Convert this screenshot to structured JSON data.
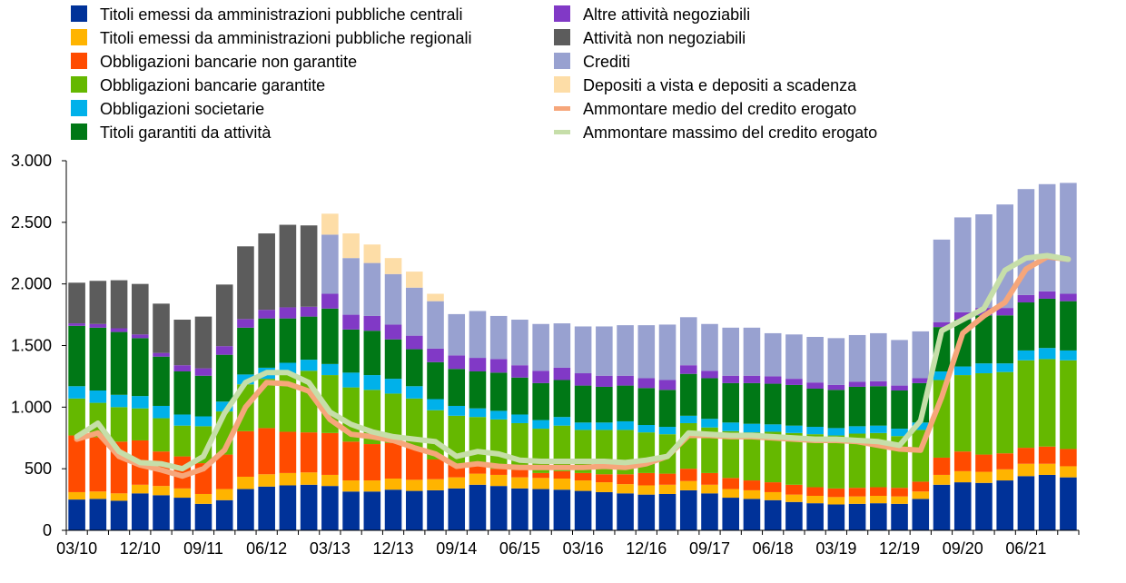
{
  "chart_data": {
    "type": "bar",
    "stacked": true,
    "categories": [
      "03/10",
      "",
      "",
      "12/10",
      "",
      "",
      "09/11",
      "",
      "",
      "06/12",
      "",
      "",
      "03/13",
      "",
      "",
      "12/13",
      "",
      "",
      "09/14",
      "",
      "",
      "06/15",
      "",
      "",
      "03/16",
      "",
      "",
      "12/16",
      "",
      "",
      "09/17",
      "",
      "",
      "06/18",
      "",
      "",
      "03/19",
      "",
      "",
      "12/19",
      "",
      "",
      "09/20",
      "",
      "",
      "06/21",
      "",
      ""
    ],
    "x_tick_labels": [
      "03/10",
      "12/10",
      "09/11",
      "06/12",
      "03/13",
      "12/13",
      "09/14",
      "06/15",
      "03/16",
      "12/16",
      "09/17",
      "06/18",
      "03/19",
      "12/19",
      "09/20",
      "06/21"
    ],
    "ylim": [
      0,
      3000
    ],
    "y_ticks": [
      0,
      500,
      1000,
      1500,
      2000,
      2500,
      3000
    ],
    "y_tick_labels": [
      "0",
      "500",
      "1.000",
      "1.500",
      "2.000",
      "2.500",
      "3.000"
    ],
    "grid": false,
    "legend_position": "top",
    "series": [
      {
        "name": "Titoli emessi da amministrazioni pubbliche centrali",
        "color": "#003299",
        "kind": "bar",
        "values": [
          250,
          255,
          240,
          300,
          285,
          265,
          215,
          245,
          335,
          355,
          365,
          370,
          360,
          315,
          315,
          330,
          320,
          325,
          340,
          370,
          360,
          340,
          335,
          330,
          320,
          310,
          300,
          290,
          295,
          325,
          300,
          265,
          255,
          245,
          230,
          220,
          210,
          215,
          220,
          215,
          255,
          370,
          390,
          385,
          405,
          440,
          450,
          430
        ]
      },
      {
        "name": "Titoli emessi da amministrazioni pubbliche regionali",
        "color": "#FFB400",
        "kind": "bar",
        "values": [
          60,
          60,
          60,
          70,
          75,
          75,
          80,
          90,
          100,
          100,
          100,
          100,
          90,
          90,
          90,
          90,
          90,
          90,
          90,
          90,
          90,
          90,
          90,
          90,
          85,
          80,
          75,
          75,
          75,
          75,
          70,
          70,
          70,
          65,
          60,
          60,
          60,
          60,
          60,
          60,
          60,
          80,
          90,
          90,
          90,
          100,
          90,
          90
        ]
      },
      {
        "name": "Obbligazioni bancarie non garantite",
        "color": "#FF4B00",
        "kind": "bar",
        "values": [
          460,
          440,
          420,
          360,
          280,
          260,
          250,
          280,
          370,
          375,
          335,
          325,
          340,
          315,
          295,
          290,
          260,
          160,
          100,
          60,
          50,
          60,
          40,
          60,
          60,
          65,
          80,
          100,
          90,
          100,
          95,
          90,
          80,
          80,
          80,
          70,
          70,
          70,
          70,
          70,
          80,
          140,
          160,
          140,
          130,
          130,
          140,
          140
        ]
      },
      {
        "name": "Obbligazioni bancarie garantite",
        "color": "#65B800",
        "kind": "bar",
        "values": [
          300,
          280,
          280,
          260,
          270,
          250,
          300,
          350,
          380,
          400,
          470,
          500,
          470,
          440,
          440,
          400,
          400,
          400,
          400,
          400,
          400,
          380,
          360,
          370,
          350,
          360,
          360,
          330,
          320,
          370,
          370,
          380,
          390,
          410,
          420,
          430,
          430,
          440,
          440,
          420,
          420,
          630,
          620,
          660,
          660,
          710,
          710,
          720
        ]
      },
      {
        "name": "Obbligazioni societarie",
        "color": "#00B1EA",
        "kind": "bar",
        "values": [
          100,
          100,
          100,
          100,
          100,
          90,
          80,
          80,
          80,
          90,
          90,
          90,
          90,
          120,
          120,
          120,
          100,
          90,
          80,
          70,
          70,
          70,
          70,
          70,
          60,
          60,
          70,
          60,
          60,
          60,
          70,
          70,
          70,
          60,
          60,
          60,
          60,
          60,
          60,
          60,
          60,
          70,
          70,
          80,
          70,
          80,
          90,
          80
        ]
      },
      {
        "name": "Titoli garantiti da attività",
        "color": "#007816",
        "kind": "bar",
        "values": [
          490,
          510,
          510,
          470,
          400,
          350,
          330,
          380,
          380,
          400,
          360,
          350,
          450,
          350,
          360,
          320,
          300,
          300,
          300,
          300,
          310,
          300,
          300,
          300,
          300,
          290,
          290,
          300,
          300,
          340,
          330,
          320,
          330,
          330,
          330,
          310,
          310,
          320,
          320,
          310,
          320,
          360,
          380,
          390,
          390,
          390,
          400,
          400
        ]
      },
      {
        "name": "Altre attività negoziabili",
        "color": "#8139C6",
        "kind": "bar",
        "values": [
          20,
          30,
          30,
          30,
          30,
          50,
          60,
          70,
          70,
          70,
          90,
          80,
          120,
          120,
          120,
          120,
          110,
          110,
          110,
          110,
          110,
          100,
          100,
          100,
          100,
          90,
          80,
          80,
          80,
          70,
          60,
          60,
          60,
          60,
          50,
          50,
          40,
          40,
          40,
          40,
          40,
          40,
          60,
          60,
          60,
          60,
          60,
          60
        ]
      },
      {
        "name": "Attività non negoziabili",
        "color": "#5C5C5C",
        "kind": "bar",
        "values": [
          330,
          350,
          390,
          410,
          400,
          370,
          420,
          500,
          590,
          620,
          670,
          660,
          0,
          0,
          0,
          0,
          0,
          0,
          0,
          0,
          0,
          0,
          0,
          0,
          0,
          0,
          0,
          0,
          0,
          0,
          0,
          0,
          0,
          0,
          0,
          0,
          0,
          0,
          0,
          0,
          0,
          0,
          0,
          0,
          0,
          0,
          0,
          0
        ]
      },
      {
        "name": "Crediti",
        "color": "#98A1D0",
        "kind": "bar",
        "values": [
          0,
          0,
          0,
          0,
          0,
          0,
          0,
          0,
          0,
          0,
          0,
          0,
          480,
          460,
          430,
          410,
          390,
          385,
          335,
          380,
          350,
          370,
          380,
          360,
          380,
          400,
          410,
          430,
          450,
          390,
          380,
          390,
          390,
          350,
          360,
          370,
          380,
          380,
          390,
          370,
          380,
          670,
          770,
          760,
          840,
          860,
          870,
          900
        ]
      },
      {
        "name": "Depositi a vista e depositi a scadenza",
        "color": "#FDDDA7",
        "kind": "bar",
        "values": [
          0,
          0,
          0,
          0,
          0,
          0,
          0,
          0,
          0,
          0,
          0,
          0,
          170,
          200,
          150,
          130,
          130,
          60,
          0,
          0,
          0,
          0,
          0,
          0,
          0,
          0,
          0,
          0,
          0,
          0,
          0,
          0,
          0,
          0,
          0,
          0,
          0,
          0,
          0,
          0,
          0,
          0,
          0,
          0,
          0,
          0,
          0,
          0
        ]
      },
      {
        "name": "Ammontare medio del credito erogato",
        "color": "#F6A67A",
        "kind": "line",
        "values": [
          740,
          790,
          600,
          530,
          490,
          440,
          500,
          650,
          1000,
          1200,
          1190,
          1130,
          900,
          780,
          760,
          730,
          670,
          620,
          520,
          540,
          520,
          510,
          510,
          510,
          510,
          520,
          510,
          540,
          600,
          770,
          770,
          760,
          760,
          750,
          740,
          730,
          730,
          720,
          690,
          660,
          650,
          1080,
          1600,
          1740,
          1850,
          2120,
          2220,
          2200
        ]
      },
      {
        "name": "Ammontare massimo del credito erogato",
        "color": "#C6DEA9",
        "kind": "line",
        "values": [
          760,
          870,
          640,
          550,
          540,
          500,
          600,
          950,
          1200,
          1280,
          1280,
          1200,
          960,
          860,
          800,
          760,
          740,
          720,
          600,
          640,
          620,
          570,
          560,
          560,
          560,
          560,
          550,
          570,
          600,
          790,
          780,
          770,
          770,
          760,
          750,
          740,
          740,
          730,
          720,
          690,
          890,
          1620,
          1710,
          1800,
          2110,
          2210,
          2230,
          2200
        ]
      }
    ]
  }
}
